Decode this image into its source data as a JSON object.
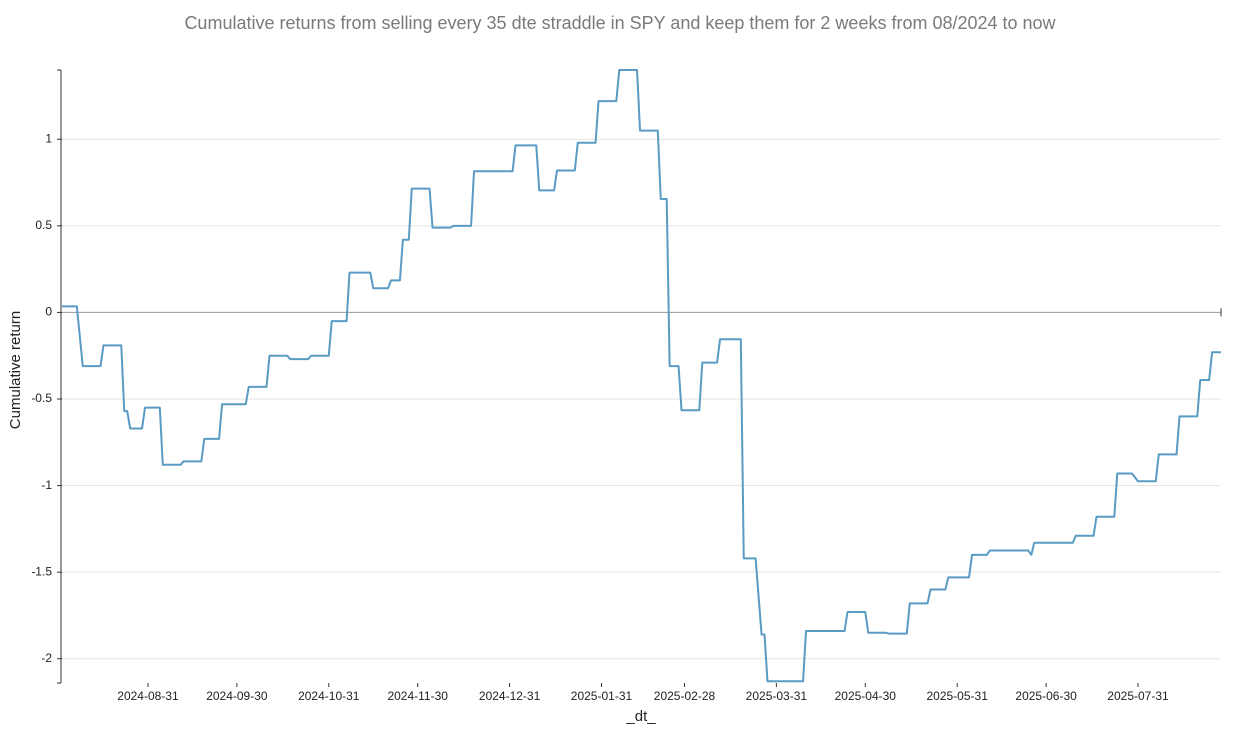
{
  "chart_data": {
    "type": "line",
    "title": "Cumulative returns from selling every 35 dte straddle in SPY and keep them for 2 weeks from 08/2024 to now",
    "x_label": "_dt_",
    "y_label": "Cumulative return",
    "x": [
      "2024-08-02",
      "2024-08-07",
      "2024-08-09",
      "2024-08-15",
      "2024-08-16",
      "2024-08-22",
      "2024-08-23",
      "2024-08-24",
      "2024-08-25",
      "2024-08-29",
      "2024-08-30",
      "2024-09-04",
      "2024-09-05",
      "2024-09-11",
      "2024-09-12",
      "2024-09-18",
      "2024-09-19",
      "2024-09-24",
      "2024-09-25",
      "2024-10-03",
      "2024-10-04",
      "2024-10-10",
      "2024-10-11",
      "2024-10-17",
      "2024-10-18",
      "2024-10-24",
      "2024-10-25",
      "2024-10-31",
      "2024-11-01",
      "2024-11-06",
      "2024-11-07",
      "2024-11-14",
      "2024-11-15",
      "2024-11-20",
      "2024-11-21",
      "2024-11-24",
      "2024-11-25",
      "2024-11-27",
      "2024-11-28",
      "2024-12-04",
      "2024-12-05",
      "2024-12-11",
      "2024-12-12",
      "2024-12-18",
      "2024-12-19",
      "2025-01-01",
      "2025-01-02",
      "2025-01-09",
      "2025-01-10",
      "2025-01-15",
      "2025-01-16",
      "2025-01-22",
      "2025-01-23",
      "2025-01-29",
      "2025-01-30",
      "2025-02-05",
      "2025-02-06",
      "2025-02-12",
      "2025-02-13",
      "2025-02-19",
      "2025-02-20",
      "2025-02-22",
      "2025-02-23",
      "2025-02-26",
      "2025-02-27",
      "2025-03-05",
      "2025-03-06",
      "2025-03-11",
      "2025-03-12",
      "2025-03-19",
      "2025-03-20",
      "2025-03-24",
      "2025-03-26",
      "2025-03-27",
      "2025-03-28",
      "2025-04-09",
      "2025-04-10",
      "2025-04-23",
      "2025-04-24",
      "2025-04-30",
      "2025-05-01",
      "2025-05-07",
      "2025-05-08",
      "2025-05-14",
      "2025-05-15",
      "2025-05-21",
      "2025-05-22",
      "2025-05-27",
      "2025-05-28",
      "2025-06-04",
      "2025-06-05",
      "2025-06-10",
      "2025-06-11",
      "2025-06-24",
      "2025-06-25",
      "2025-06-26",
      "2025-07-09",
      "2025-07-10",
      "2025-07-16",
      "2025-07-17",
      "2025-07-23",
      "2025-07-24",
      "2025-07-29",
      "2025-07-31",
      "2025-08-06",
      "2025-08-07",
      "2025-08-13",
      "2025-08-14",
      "2025-08-20",
      "2025-08-21",
      "2025-08-24",
      "2025-08-25",
      "2025-08-28"
    ],
    "series": [
      {
        "name": "Cumulative return",
        "color": "#5a9bc4",
        "values": [
          0.035,
          0.035,
          -0.31,
          -0.31,
          -0.19,
          -0.19,
          -0.57,
          -0.57,
          -0.67,
          -0.67,
          -0.55,
          -0.55,
          -0.88,
          -0.88,
          -0.86,
          -0.86,
          -0.73,
          -0.73,
          -0.53,
          -0.53,
          -0.43,
          -0.43,
          -0.25,
          -0.25,
          -0.27,
          -0.27,
          -0.25,
          -0.25,
          -0.05,
          -0.05,
          0.23,
          0.23,
          0.14,
          0.14,
          0.185,
          0.185,
          0.42,
          0.42,
          0.715,
          0.715,
          0.49,
          0.49,
          0.5,
          0.5,
          0.815,
          0.815,
          0.965,
          0.965,
          0.705,
          0.705,
          0.82,
          0.82,
          0.98,
          0.98,
          1.22,
          1.22,
          1.4,
          1.4,
          1.05,
          1.05,
          0.655,
          0.655,
          -0.31,
          -0.31,
          -0.565,
          -0.565,
          -0.29,
          -0.29,
          -0.155,
          -0.155,
          -1.42,
          -1.42,
          -1.86,
          -1.86,
          -2.13,
          -2.13,
          -1.84,
          -1.84,
          -1.73,
          -1.73,
          -1.85,
          -1.85,
          -1.855,
          -1.855,
          -1.68,
          -1.68,
          -1.6,
          -1.6,
          -1.53,
          -1.53,
          -1.4,
          -1.4,
          -1.375,
          -1.375,
          -1.4,
          -1.33,
          -1.33,
          -1.29,
          -1.29,
          -1.18,
          -1.18,
          -0.93,
          -0.93,
          -0.975,
          -0.975,
          -0.82,
          -0.82,
          -0.6,
          -0.6,
          -0.39,
          -0.39,
          -0.23,
          -0.23
        ]
      }
    ],
    "xlim": [
      "2024-08-02",
      "2025-08-28"
    ],
    "xticks": [
      "2024-08-31",
      "2024-09-30",
      "2024-10-31",
      "2024-11-30",
      "2024-12-31",
      "2025-01-31",
      "2025-02-28",
      "2025-03-31",
      "2025-04-30",
      "2025-05-31",
      "2025-06-30",
      "2025-07-31"
    ],
    "ylim": [
      -2.14,
      1.4
    ],
    "yticks": [
      -2,
      -1.5,
      -1,
      -0.5,
      0,
      0.5,
      1
    ],
    "grid": true
  }
}
